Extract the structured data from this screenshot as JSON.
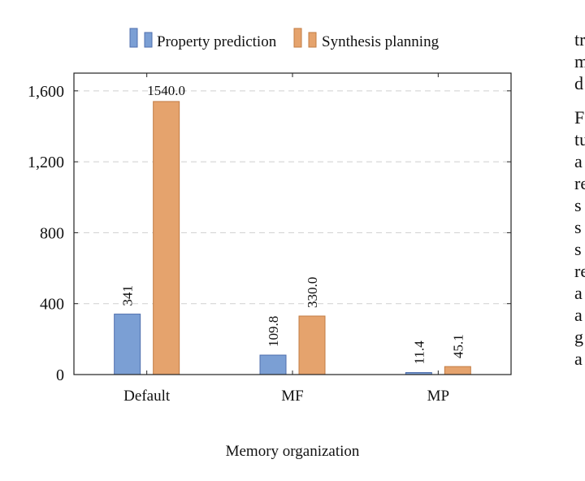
{
  "chart_data": {
    "type": "bar",
    "categories": [
      "Default",
      "MF",
      "MP"
    ],
    "series": [
      {
        "name": "Property prediction",
        "values": [
          341,
          109.8,
          11.4
        ],
        "labels": [
          "341",
          "109.8",
          "11.4"
        ],
        "color": "#7b9fd4"
      },
      {
        "name": "Synthesis planning",
        "values": [
          1540.0,
          330.0,
          45.1
        ],
        "labels": [
          "1540.0",
          "330.0",
          "45.1"
        ],
        "color": "#e5a36d"
      }
    ],
    "xlabel": "Memory organization",
    "ylabel": "",
    "ylim": [
      0,
      1700
    ],
    "yticks": [
      0,
      400,
      800,
      1200,
      1600
    ],
    "ytick_labels": [
      "0",
      "400",
      "800",
      "1,200",
      "1,600"
    ],
    "grid": "horizontal dashed",
    "legend": "top-center"
  },
  "side_text": {
    "para1": [
      "tr",
      "m",
      "d"
    ],
    "para2": [
      "F",
      "tu",
      "a",
      "re",
      "s",
      "s",
      "s",
      "re",
      "a",
      "a",
      "g",
      "a"
    ]
  }
}
